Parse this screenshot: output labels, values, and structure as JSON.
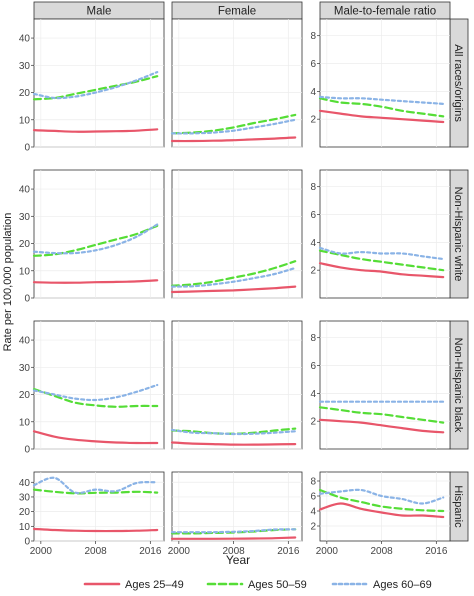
{
  "chart_data": {
    "type": "line",
    "ylabel": "Rate per 100,000 population",
    "xlabel": "Year",
    "x_ticks": [
      2000,
      2008,
      2016
    ],
    "x_range": [
      1999,
      2018
    ],
    "columns": [
      "Male",
      "Female",
      "Male-to-female ratio"
    ],
    "rows": [
      "All races/origins",
      "Non-Hispanic white",
      "Non-Hispanic black",
      "Hispanic"
    ],
    "rate_axis": {
      "ylim": [
        0,
        47
      ],
      "ticks": [
        0,
        10,
        20,
        30,
        40
      ]
    },
    "ratio_axis": {
      "ylim": [
        0,
        9.2
      ],
      "ticks": [
        2,
        4,
        6,
        8
      ]
    },
    "series": [
      {
        "name": "Ages 25–49",
        "color": "#e8566a",
        "dash": "solid"
      },
      {
        "name": "Ages 50–59",
        "color": "#55dd36",
        "dash": "dashed"
      },
      {
        "name": "Ages 60–69",
        "color": "#8ab3e6",
        "dash": "dotted"
      }
    ],
    "years": [
      1999,
      2002,
      2005,
      2008,
      2011,
      2014,
      2017
    ],
    "panels": [
      {
        "row": 0,
        "col": 0,
        "values": [
          [
            6.2,
            5.9,
            5.6,
            5.7,
            5.8,
            6.0,
            6.5
          ],
          [
            17.5,
            18.0,
            19.5,
            21.0,
            22.5,
            24.0,
            26.0
          ],
          [
            19.5,
            18.0,
            18.5,
            20.0,
            22.0,
            24.5,
            27.5
          ]
        ]
      },
      {
        "row": 0,
        "col": 1,
        "values": [
          [
            2.2,
            2.2,
            2.3,
            2.5,
            2.8,
            3.1,
            3.5
          ],
          [
            5.0,
            5.3,
            6.0,
            7.2,
            8.8,
            10.2,
            11.8
          ],
          [
            5.0,
            5.0,
            5.3,
            6.0,
            7.2,
            8.5,
            10.0
          ]
        ]
      },
      {
        "row": 0,
        "col": 2,
        "values": [
          [
            2.6,
            2.4,
            2.2,
            2.1,
            2.0,
            1.9,
            1.8
          ],
          [
            3.5,
            3.2,
            3.1,
            2.9,
            2.6,
            2.4,
            2.2
          ],
          [
            3.6,
            3.5,
            3.5,
            3.4,
            3.3,
            3.2,
            3.1
          ]
        ]
      },
      {
        "row": 1,
        "col": 0,
        "values": [
          [
            5.8,
            5.6,
            5.6,
            5.8,
            5.9,
            6.1,
            6.5
          ],
          [
            15.5,
            16.0,
            17.5,
            19.5,
            21.5,
            23.5,
            26.5
          ],
          [
            17.0,
            16.5,
            16.5,
            17.5,
            19.5,
            22.5,
            27.0
          ]
        ]
      },
      {
        "row": 1,
        "col": 1,
        "values": [
          [
            2.2,
            2.4,
            2.6,
            2.8,
            3.2,
            3.6,
            4.2
          ],
          [
            4.5,
            5.0,
            6.0,
            7.5,
            9.0,
            11.0,
            13.5
          ],
          [
            4.2,
            4.3,
            5.0,
            6.0,
            7.3,
            8.8,
            11.0
          ]
        ]
      },
      {
        "row": 1,
        "col": 2,
        "values": [
          [
            2.5,
            2.2,
            2.0,
            1.9,
            1.7,
            1.6,
            1.5
          ],
          [
            3.4,
            3.1,
            2.8,
            2.6,
            2.4,
            2.2,
            2.0
          ],
          [
            3.6,
            3.2,
            3.3,
            3.2,
            3.2,
            3.0,
            2.8
          ]
        ]
      },
      {
        "row": 2,
        "col": 0,
        "values": [
          [
            6.5,
            4.5,
            3.4,
            2.8,
            2.4,
            2.2,
            2.2
          ],
          [
            22.0,
            19.5,
            17.0,
            16.0,
            15.5,
            15.8,
            15.8
          ],
          [
            21.5,
            20.0,
            18.5,
            18.0,
            19.0,
            21.0,
            23.5
          ]
        ]
      },
      {
        "row": 2,
        "col": 1,
        "values": [
          [
            2.4,
            2.0,
            1.8,
            1.6,
            1.6,
            1.7,
            1.8
          ],
          [
            6.8,
            6.5,
            5.8,
            5.6,
            6.0,
            6.8,
            7.5
          ],
          [
            7.0,
            6.0,
            5.8,
            5.5,
            5.6,
            6.0,
            6.5
          ]
        ]
      },
      {
        "row": 2,
        "col": 2,
        "values": [
          [
            2.1,
            2.0,
            1.9,
            1.7,
            1.5,
            1.3,
            1.2
          ],
          [
            3.0,
            2.8,
            2.6,
            2.5,
            2.3,
            2.1,
            1.9
          ],
          [
            3.4,
            3.4,
            3.4,
            3.4,
            3.4,
            3.4,
            3.4
          ]
        ]
      },
      {
        "row": 3,
        "col": 0,
        "values": [
          [
            8.2,
            7.5,
            7.0,
            6.8,
            6.8,
            7.0,
            7.5
          ],
          [
            35.0,
            33.5,
            32.5,
            32.8,
            33.0,
            33.5,
            33.0
          ],
          [
            38.0,
            43.0,
            33.0,
            35.0,
            34.0,
            39.5,
            40.0
          ]
        ]
      },
      {
        "row": 3,
        "col": 1,
        "values": [
          [
            1.5,
            1.5,
            1.5,
            1.6,
            1.7,
            1.9,
            2.4
          ],
          [
            5.2,
            5.2,
            5.5,
            5.8,
            6.5,
            7.5,
            8.0
          ],
          [
            6.0,
            6.0,
            6.0,
            6.3,
            6.8,
            7.8,
            8.0
          ]
        ]
      },
      {
        "row": 3,
        "col": 2,
        "values": [
          [
            4.2,
            5.0,
            4.3,
            3.8,
            3.4,
            3.4,
            3.2
          ],
          [
            6.8,
            5.8,
            5.2,
            4.6,
            4.3,
            4.1,
            4.0
          ],
          [
            6.3,
            6.6,
            6.8,
            6.0,
            5.6,
            5.0,
            5.8
          ]
        ]
      }
    ],
    "legend": {
      "position": "bottom"
    }
  }
}
